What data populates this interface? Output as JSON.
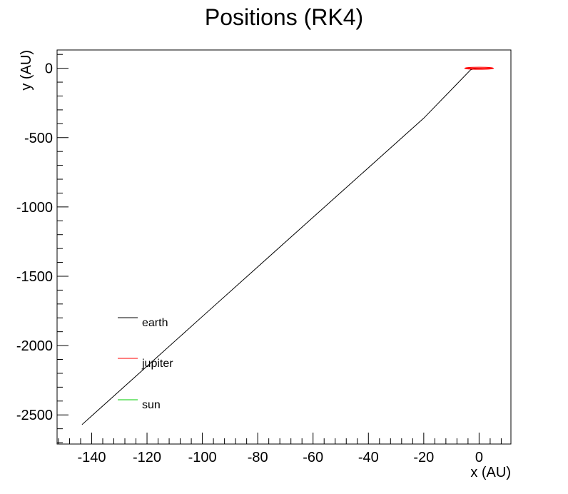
{
  "chart_data": {
    "type": "line",
    "title": "Positions (RK4)",
    "xlabel": "x (AU)",
    "ylabel": "y (AU)",
    "xlim": [
      -152.5,
      11.5
    ],
    "ylim": [
      -2710,
      132
    ],
    "xticks": [
      -140,
      -120,
      -100,
      -80,
      -60,
      -40,
      -20,
      0
    ],
    "yticks": [
      0,
      -500,
      -1000,
      -1500,
      -2000,
      -2500
    ],
    "grid": false,
    "legend": "lower-left",
    "series": [
      {
        "name": "earth",
        "color": "#000000",
        "x": [
          -143.5,
          -100,
          -60,
          -20,
          -3,
          -1,
          1,
          0
        ],
        "y": [
          -2570,
          -1790,
          -1075,
          -360,
          -10,
          -2,
          0,
          0
        ]
      },
      {
        "name": "jupiter",
        "color": "#ff0000",
        "x": [
          5.2,
          3.7,
          0,
          -3.7,
          -5.2,
          -3.7,
          0,
          3.7,
          5.2
        ],
        "y": [
          0,
          0.8,
          1.1,
          0.8,
          0,
          -0.8,
          -1.1,
          -0.8,
          0
        ]
      },
      {
        "name": "sun",
        "color": "#00cc00",
        "x": [
          0,
          0.01,
          0
        ],
        "y": [
          0,
          0.005,
          0
        ]
      }
    ]
  }
}
